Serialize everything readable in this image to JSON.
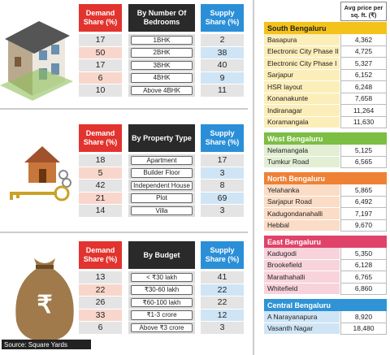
{
  "tables": [
    {
      "headers": [
        "Demand Share (%)",
        "By Number Of Bedrooms",
        "Supply Share (%)"
      ],
      "rows": [
        [
          "17",
          "1BHK",
          "2"
        ],
        [
          "50",
          "2BHK",
          "38"
        ],
        [
          "17",
          "3BHK",
          "40"
        ],
        [
          "6",
          "4BHK",
          "9"
        ],
        [
          "10",
          "Above 4BHK",
          "11"
        ]
      ]
    },
    {
      "headers": [
        "Demand Share (%)",
        "By Property Type",
        "Supply Share (%)"
      ],
      "rows": [
        [
          "18",
          "Apartment",
          "17"
        ],
        [
          "5",
          "Builder Floor",
          "3"
        ],
        [
          "42",
          "Independent House",
          "8"
        ],
        [
          "21",
          "Plot",
          "69"
        ],
        [
          "14",
          "Villa",
          "3"
        ]
      ]
    },
    {
      "headers": [
        "Demand Share (%)",
        "By Budget",
        "Supply Share (%)"
      ],
      "rows": [
        [
          "13",
          "< ₹30 lakh",
          "41"
        ],
        [
          "22",
          "₹30-60 lakh",
          "22"
        ],
        [
          "26",
          "₹60-100 lakh",
          "22"
        ],
        [
          "33",
          "₹1-3 crore",
          "12"
        ],
        [
          "6",
          "Above ₹3 crore",
          "3"
        ]
      ]
    }
  ],
  "bag_symbol": "₹",
  "source": "Source: Square Yards",
  "price_header": "Avg price per sq. ft. (₹)",
  "regions": [
    {
      "name": "South Bengaluru",
      "rows": [
        [
          "Basapura",
          "4,362"
        ],
        [
          "Electronic City Phase II",
          "4,725"
        ],
        [
          "Electronic City Phase I",
          "5,327"
        ],
        [
          "Sarjapur",
          "6,152"
        ],
        [
          "HSR layout",
          "6,248"
        ],
        [
          "Konanakunte",
          "7,658"
        ],
        [
          "Indiranagar",
          "11,264"
        ],
        [
          "Koramangala",
          "11,630"
        ]
      ]
    },
    {
      "name": "West Bengaluru",
      "rows": [
        [
          "Nelamangala",
          "5,125"
        ],
        [
          "Tumkur Road",
          "6,565"
        ]
      ]
    },
    {
      "name": "North Bengaluru",
      "rows": [
        [
          "Yelahanka",
          "5,865"
        ],
        [
          "Sarjapur Road",
          "6,492"
        ],
        [
          "Kadugondanahalli",
          "7,197"
        ],
        [
          "Hebbal",
          "9,670"
        ]
      ]
    },
    {
      "name": "East Bengaluru",
      "rows": [
        [
          "Kadugodi",
          "5,350"
        ],
        [
          "Brookefield",
          "6,128"
        ],
        [
          "Marathahalli",
          "6,765"
        ],
        [
          "Whitefield",
          "6,860"
        ]
      ]
    },
    {
      "name": "Central Bengaluru",
      "rows": [
        [
          "A Narayanapura",
          "8,920"
        ],
        [
          "Vasanth Nagar",
          "18,480"
        ]
      ]
    }
  ]
}
